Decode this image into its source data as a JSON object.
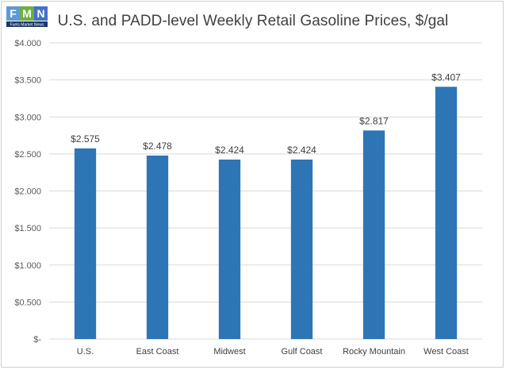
{
  "logo": {
    "letters": [
      "F",
      "M",
      "N"
    ],
    "tagline": "Fuels Market News",
    "colors": [
      "#5b9bd5",
      "#70ad47",
      "#ffc000",
      "#4472c4"
    ]
  },
  "chart_data": {
    "type": "bar",
    "title": "U.S. and PADD-level Weekly Retail Gasoline Prices, $/gal",
    "categories": [
      "U.S.",
      "East Coast",
      "Midwest",
      "Gulf Coast",
      "Rocky Mountain",
      "West Coast"
    ],
    "values": [
      2.575,
      2.478,
      2.424,
      2.424,
      2.817,
      3.407
    ],
    "data_labels": [
      "$2.575",
      "$2.478",
      "$2.424",
      "$2.424",
      "$2.817",
      "$3.407"
    ],
    "ylim": [
      0,
      4.0
    ],
    "yticks": [
      0,
      0.5,
      1.0,
      1.5,
      2.0,
      2.5,
      3.0,
      3.5,
      4.0
    ],
    "ytick_labels": [
      "$-",
      "$0.500",
      "$1.000",
      "$1.500",
      "$2.000",
      "$2.500",
      "$3.000",
      "$3.500",
      "$4.000"
    ],
    "xlabel": "",
    "ylabel": "",
    "grid": true,
    "bar_color": "#2e75b6",
    "grid_color": "#d9d9d9"
  }
}
